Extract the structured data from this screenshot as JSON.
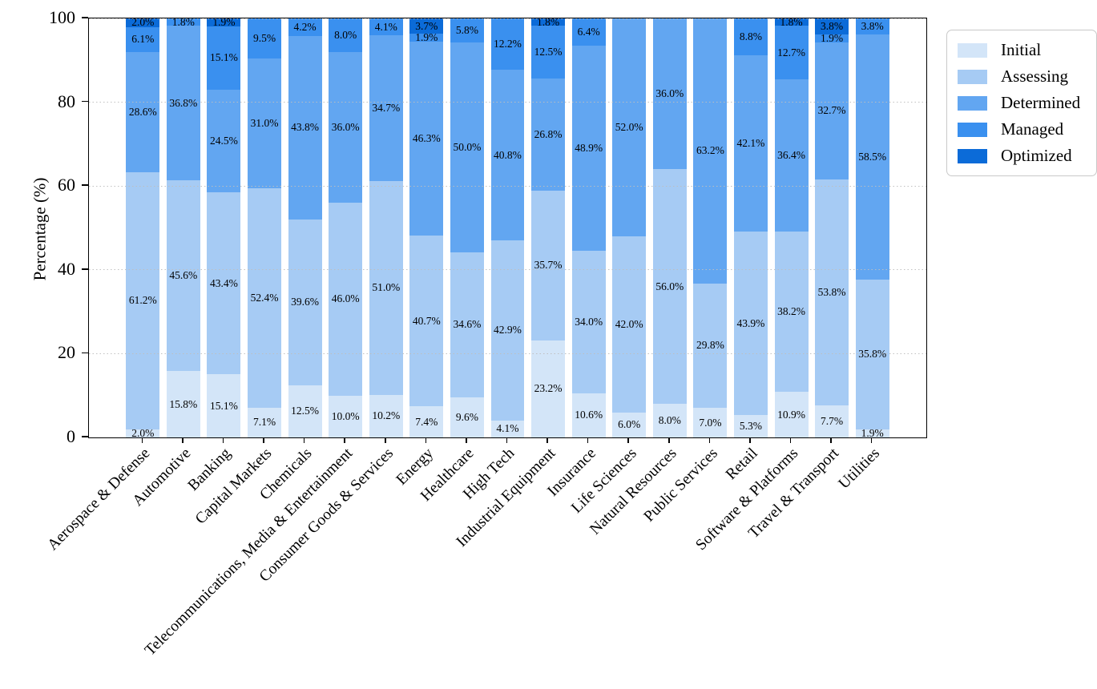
{
  "figure": {
    "background": "#ffffff"
  },
  "chart_data": {
    "type": "bar",
    "stacked": true,
    "orientation": "vertical",
    "title": "",
    "xlabel": "",
    "ylabel": "Percentage (%)",
    "ylim": [
      0,
      100
    ],
    "yticks": [
      0,
      20,
      40,
      60,
      80,
      100
    ],
    "grid": "horizontal dotted gridlines at y ticks, drawn over bars",
    "value_label_format": "one decimal + %",
    "legend": {
      "position": "outside upper right",
      "entries": [
        "Initial",
        "Assessing",
        "Determined",
        "Managed",
        "Optimized"
      ]
    },
    "categories": [
      "Aerospace & Defense",
      "Automotive",
      "Banking",
      "Capital Markets",
      "Chemicals",
      "Telecommunications, Media & Entertainment",
      "Consumer Goods & Services",
      "Energy",
      "Healthcare",
      "High Tech",
      "Industrial Equipment",
      "Insurance",
      "Life Sciences",
      "Natural Resources",
      "Public Services",
      "Retail",
      "Software & Platforms",
      "Travel & Transport",
      "Utilities"
    ],
    "series": [
      {
        "name": "Initial",
        "color": "#d3e5f8",
        "values": [
          2.0,
          15.8,
          15.1,
          7.1,
          12.5,
          10.0,
          10.2,
          7.4,
          9.6,
          4.1,
          23.2,
          10.6,
          6.0,
          8.0,
          7.0,
          5.3,
          10.9,
          7.7,
          1.9
        ]
      },
      {
        "name": "Assessing",
        "color": "#a6cbf4",
        "values": [
          61.2,
          45.6,
          43.4,
          52.4,
          39.6,
          46.0,
          51.0,
          40.7,
          34.6,
          42.9,
          35.7,
          34.0,
          42.0,
          56.0,
          29.8,
          43.9,
          38.2,
          53.8,
          35.8
        ]
      },
      {
        "name": "Determined",
        "color": "#62a6f1",
        "values": [
          28.6,
          36.8,
          24.5,
          31.0,
          43.8,
          36.0,
          34.7,
          46.3,
          50.0,
          40.8,
          26.8,
          48.9,
          52.0,
          36.0,
          63.2,
          42.1,
          36.4,
          32.7,
          58.5
        ]
      },
      {
        "name": "Managed",
        "color": "#3a90ef",
        "values": [
          6.1,
          1.8,
          15.1,
          9.5,
          4.2,
          8.0,
          4.1,
          1.9,
          5.8,
          12.2,
          12.5,
          6.4,
          0,
          0,
          0,
          8.8,
          12.7,
          1.9,
          3.8
        ]
      },
      {
        "name": "Optimized",
        "color": "#0b6bd8",
        "values": [
          2.0,
          0,
          1.9,
          0,
          0,
          0,
          0,
          3.7,
          0,
          0,
          1.8,
          0,
          0,
          0,
          0,
          0,
          1.8,
          3.8,
          0
        ]
      }
    ]
  }
}
